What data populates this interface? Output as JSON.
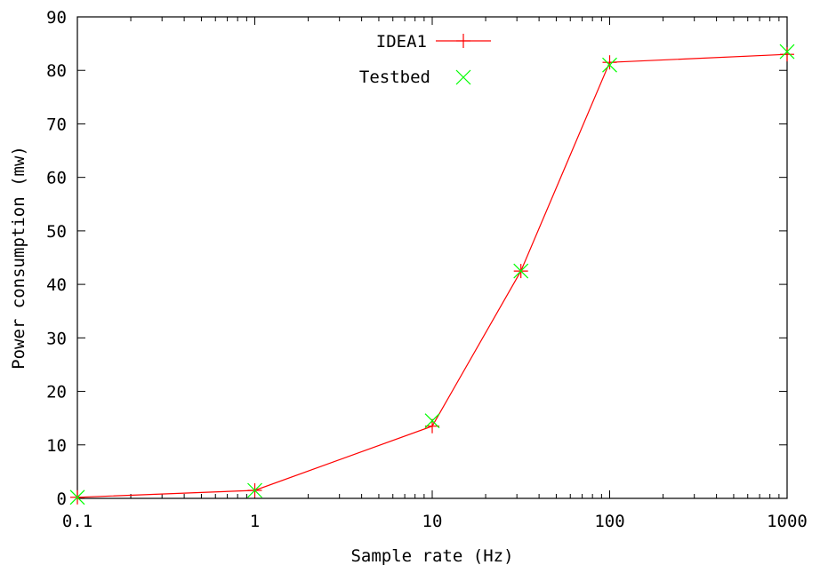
{
  "chart_data": {
    "type": "line",
    "xlabel": "Sample rate (Hz)",
    "ylabel": "Power consumption (mw)",
    "x_scale": "log",
    "xlim": [
      0.1,
      1000
    ],
    "ylim": [
      0,
      90
    ],
    "x_ticks": [
      "0.1",
      "1",
      "10",
      "100",
      "1000"
    ],
    "x_tick_values": [
      0.1,
      1,
      10,
      100,
      1000
    ],
    "y_ticks": [
      "0",
      "10",
      "20",
      "30",
      "40",
      "50",
      "60",
      "70",
      "80",
      "90"
    ],
    "y_tick_values": [
      0,
      10,
      20,
      30,
      40,
      50,
      60,
      70,
      80,
      90
    ],
    "grid": false,
    "legend_position": "top-center",
    "series": [
      {
        "name": "IDEA1",
        "style": "line+plus",
        "color": "#ff0000",
        "x": [
          0.1,
          1,
          10,
          31.6,
          100,
          1000
        ],
        "y": [
          0.2,
          1.5,
          13.5,
          42.5,
          81.5,
          83
        ]
      },
      {
        "name": "Testbed",
        "style": "cross",
        "color": "#00ff00",
        "x": [
          0.1,
          1,
          10,
          31.6,
          100,
          1000
        ],
        "y": [
          0.2,
          1.5,
          14.5,
          42.5,
          81,
          83.5
        ]
      }
    ]
  }
}
